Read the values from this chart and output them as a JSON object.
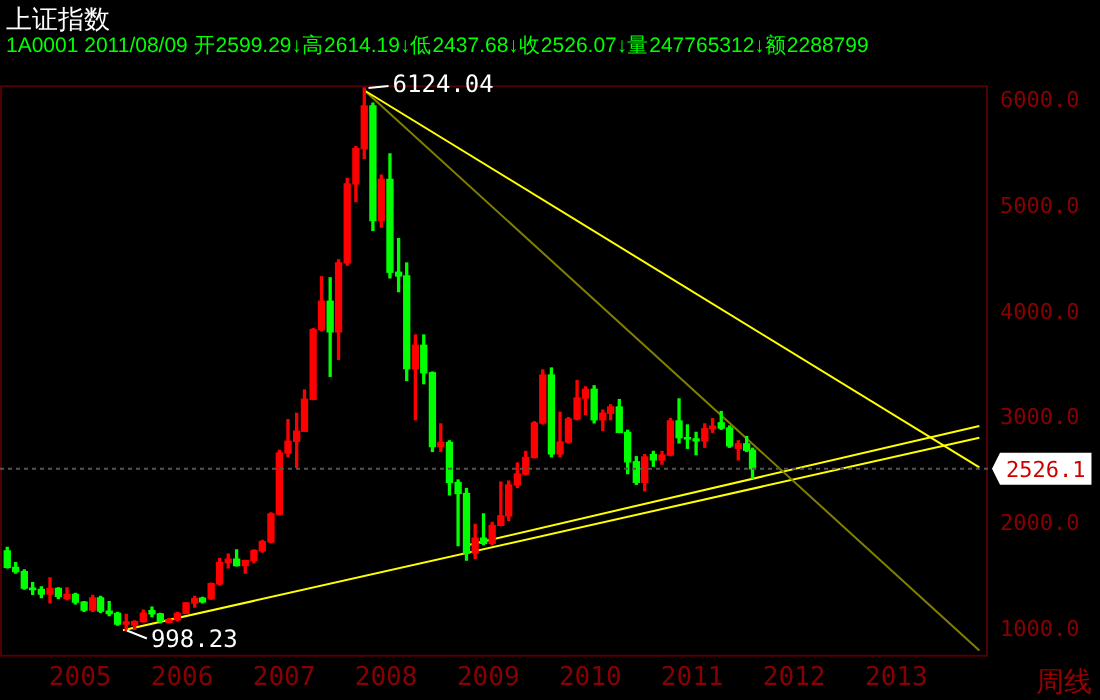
{
  "chart_data": {
    "type": "candlestick",
    "title": "上证指数",
    "subtitle": "1A0001 2011/08/09 开2599.29↓高2614.19↓低2437.68↓收2526.07↓量247765312↓额2288799",
    "xlabel": "周线",
    "x": [
      "2004-04-15",
      "2004-05-15",
      "2004-06-15",
      "2004-07-15",
      "2004-08-15",
      "2004-09-15",
      "2004-10-15",
      "2004-11-15",
      "2004-12-15",
      "2005-01-15",
      "2005-02-15",
      "2005-03-15",
      "2005-04-15",
      "2005-05-15",
      "2005-06-15",
      "2005-07-15",
      "2005-08-15",
      "2005-09-15",
      "2005-10-15",
      "2005-11-15",
      "2005-12-15",
      "2006-01-15",
      "2006-02-15",
      "2006-03-15",
      "2006-04-15",
      "2006-05-15",
      "2006-06-15",
      "2006-07-15",
      "2006-08-15",
      "2006-09-15",
      "2006-10-15",
      "2006-11-15",
      "2006-12-15",
      "2007-01-15",
      "2007-02-15",
      "2007-03-15",
      "2007-04-15",
      "2007-05-15",
      "2007-06-15",
      "2007-07-15",
      "2007-08-15",
      "2007-09-15",
      "2007-10-15",
      "2007-11-15",
      "2007-12-15",
      "2008-01-15",
      "2008-02-15",
      "2008-03-15",
      "2008-04-15",
      "2008-05-15",
      "2008-06-15",
      "2008-07-15",
      "2008-08-15",
      "2008-09-15",
      "2008-10-15",
      "2008-11-15",
      "2008-12-15",
      "2009-01-15",
      "2009-02-15",
      "2009-03-15",
      "2009-04-15",
      "2009-05-15",
      "2009-06-15",
      "2009-07-15",
      "2009-08-15",
      "2009-09-15",
      "2009-10-15",
      "2009-11-15",
      "2009-12-15",
      "2010-01-15",
      "2010-02-15",
      "2010-03-15",
      "2010-04-15",
      "2010-05-15",
      "2010-06-15",
      "2010-07-15",
      "2010-08-15",
      "2010-09-15",
      "2010-10-15",
      "2010-11-15",
      "2010-12-15",
      "2011-01-15",
      "2011-02-15",
      "2011-03-15",
      "2011-04-15",
      "2011-05-15",
      "2011-06-15",
      "2011-07-15",
      "2011-08-05"
    ],
    "ohlc": [
      [
        1750,
        1783,
        1590,
        1595
      ],
      [
        1595,
        1640,
        1540,
        1555
      ],
      [
        1555,
        1570,
        1390,
        1399
      ],
      [
        1399,
        1450,
        1340,
        1386
      ],
      [
        1386,
        1410,
        1310,
        1342
      ],
      [
        1342,
        1496,
        1260,
        1396
      ],
      [
        1396,
        1400,
        1300,
        1320
      ],
      [
        1300,
        1400,
        1290,
        1340
      ],
      [
        1340,
        1350,
        1250,
        1266
      ],
      [
        1266,
        1270,
        1180,
        1191
      ],
      [
        1191,
        1330,
        1180,
        1306
      ],
      [
        1306,
        1320,
        1170,
        1181
      ],
      [
        1181,
        1270,
        1140,
        1159
      ],
      [
        1159,
        1170,
        1050,
        1060
      ],
      [
        1060,
        1150,
        998.23,
        1080
      ],
      [
        1050,
        1090,
        1010,
        1083
      ],
      [
        1083,
        1190,
        1080,
        1162
      ],
      [
        1185,
        1220,
        1130,
        1155
      ],
      [
        1155,
        1160,
        1070,
        1092
      ],
      [
        1075,
        1110,
        1070,
        1099
      ],
      [
        1099,
        1170,
        1090,
        1161
      ],
      [
        1161,
        1260,
        1160,
        1258
      ],
      [
        1258,
        1320,
        1220,
        1299
      ],
      [
        1305,
        1310,
        1260,
        1270
      ],
      [
        1298,
        1445,
        1295,
        1440
      ],
      [
        1440,
        1680,
        1430,
        1641
      ],
      [
        1641,
        1720,
        1590,
        1672
      ],
      [
        1672,
        1760,
        1610,
        1612
      ],
      [
        1612,
        1660,
        1540,
        1658
      ],
      [
        1658,
        1760,
        1640,
        1752
      ],
      [
        1752,
        1850,
        1740,
        1837
      ],
      [
        1837,
        2110,
        1830,
        2099
      ],
      [
        2099,
        2700,
        2090,
        2675
      ],
      [
        2675,
        2990,
        2640,
        2786
      ],
      [
        2786,
        3050,
        2540,
        2881
      ],
      [
        2881,
        3270,
        2880,
        3183
      ],
      [
        3183,
        3850,
        3180,
        3841
      ],
      [
        3841,
        4340,
        3830,
        4109
      ],
      [
        4109,
        4330,
        3400,
        3820
      ],
      [
        3820,
        4500,
        3560,
        4471
      ],
      [
        4471,
        5270,
        4450,
        5218
      ],
      [
        5218,
        5570,
        5050,
        5552
      ],
      [
        5552,
        6124.04,
        5460,
        5954
      ],
      [
        5954,
        5980,
        4780,
        4871
      ],
      [
        4871,
        5300,
        4810,
        5261
      ],
      [
        5261,
        5500,
        4330,
        4383
      ],
      [
        4383,
        4700,
        4200,
        4348
      ],
      [
        4348,
        4470,
        3360,
        3472
      ],
      [
        3472,
        3790,
        2990,
        3693
      ],
      [
        3693,
        3790,
        3330,
        3433
      ],
      [
        3433,
        3440,
        2690,
        2736
      ],
      [
        2736,
        2950,
        2690,
        2775
      ],
      [
        2775,
        2790,
        2280,
        2397
      ],
      [
        2397,
        2420,
        1800,
        2293
      ],
      [
        2293,
        2340,
        1664,
        1729
      ],
      [
        1729,
        2000,
        1680,
        1871
      ],
      [
        1871,
        2100,
        1810,
        1821
      ],
      [
        1821,
        2020,
        1810,
        1991
      ],
      [
        1991,
        2400,
        1990,
        2082
      ],
      [
        2082,
        2410,
        2040,
        2373
      ],
      [
        2373,
        2580,
        2350,
        2477
      ],
      [
        2477,
        2690,
        2470,
        2633
      ],
      [
        2633,
        2970,
        2630,
        2959
      ],
      [
        2959,
        3460,
        2950,
        3412
      ],
      [
        3412,
        3478,
        2640,
        2667
      ],
      [
        2667,
        3060,
        2640,
        2779
      ],
      [
        2779,
        3010,
        2770,
        2996
      ],
      [
        2996,
        3360,
        2990,
        3195
      ],
      [
        3195,
        3300,
        3040,
        3277
      ],
      [
        3277,
        3310,
        2960,
        2989
      ],
      [
        2989,
        3080,
        2890,
        3051
      ],
      [
        3051,
        3130,
        2990,
        3110
      ],
      [
        3110,
        3180,
        2870,
        2870
      ],
      [
        2870,
        2890,
        2480,
        2592
      ],
      [
        2592,
        2640,
        2380,
        2398
      ],
      [
        2398,
        2660,
        2319,
        2638
      ],
      [
        2660,
        2690,
        2550,
        2610
      ],
      [
        2610,
        2690,
        2570,
        2656
      ],
      [
        2656,
        3000,
        2650,
        2978
      ],
      [
        2978,
        3186,
        2770,
        2820
      ],
      [
        2820,
        2940,
        2720,
        2808
      ],
      [
        2808,
        2870,
        2660,
        2790
      ],
      [
        2790,
        2950,
        2730,
        2905
      ],
      [
        2905,
        3000,
        2870,
        2928
      ],
      [
        2960,
        3067,
        2900,
        2911
      ],
      [
        2911,
        2930,
        2730,
        2743
      ],
      [
        2720,
        2790,
        2610,
        2762
      ],
      [
        2762,
        2830,
        2690,
        2701
      ],
      [
        2701,
        2720,
        2437.68,
        2526.07
      ]
    ],
    "colors": [
      "#00ff00",
      "#00ff00",
      "#00ff00",
      "#00ff00",
      "#00ff00",
      "#ff0000",
      "#00ff00",
      "#ff0000",
      "#00ff00",
      "#00ff00",
      "#ff0000",
      "#00ff00",
      "#00ff00",
      "#00ff00",
      "#ff0000",
      "#ff0000",
      "#ff0000",
      "#00ff00",
      "#00ff00",
      "#ff0000",
      "#ff0000",
      "#ff0000",
      "#ff0000",
      "#00ff00",
      "#ff0000",
      "#ff0000",
      "#ff0000",
      "#00ff00",
      "#ff0000",
      "#ff0000",
      "#ff0000",
      "#ff0000",
      "#ff0000",
      "#ff0000",
      "#ff0000",
      "#ff0000",
      "#ff0000",
      "#ff0000",
      "#00ff00",
      "#ff0000",
      "#ff0000",
      "#ff0000",
      "#ff0000",
      "#00ff00",
      "#ff0000",
      "#00ff00",
      "#00ff00",
      "#00ff00",
      "#ff0000",
      "#00ff00",
      "#00ff00",
      "#ff0000",
      "#00ff00",
      "#00ff00",
      "#00ff00",
      "#ff0000",
      "#00ff00",
      "#ff0000",
      "#ff0000",
      "#ff0000",
      "#ff0000",
      "#ff0000",
      "#ff0000",
      "#ff0000",
      "#00ff00",
      "#ff0000",
      "#ff0000",
      "#ff0000",
      "#ff0000",
      "#00ff00",
      "#ff0000",
      "#ff0000",
      "#00ff00",
      "#00ff00",
      "#00ff00",
      "#ff0000",
      "#00ff00",
      "#ff0000",
      "#ff0000",
      "#00ff00",
      "#00ff00",
      "#00ff00",
      "#ff0000",
      "#ff0000",
      "#00ff00",
      "#00ff00",
      "#ff0000",
      "#00ff00",
      "#00ff00"
    ],
    "series": [
      {
        "type": "line",
        "color": "#ffff00",
        "x": [
          "2007-10-16",
          "2013-10-25"
        ],
        "values": [
          6100,
          2540
        ]
      },
      {
        "type": "line",
        "color": "#808000",
        "x": [
          "2007-10-16",
          "2013-10-25"
        ],
        "values": [
          6100,
          810
        ]
      },
      {
        "type": "line",
        "color": "#ffff00",
        "x": [
          "2005-06-03",
          "2013-10-25"
        ],
        "values": [
          1000,
          2820
        ]
      },
      {
        "type": "line",
        "color": "#ffff00",
        "x": [
          "2008-10-10",
          "2013-10-25"
        ],
        "values": [
          1800,
          2930
        ]
      }
    ],
    "marker": "none",
    "legend": false,
    "grid": false,
    "xlim": [
      "2004-03-20",
      "2013-11-25"
    ],
    "xticks": [
      "2005",
      "2006",
      "2007",
      "2008",
      "2009",
      "2010",
      "2011",
      "2012",
      "2013"
    ],
    "ylim": [
      750,
      6150
    ],
    "yticks": [
      {
        "value": 1000,
        "label": "1000.0"
      },
      {
        "value": 2000,
        "label": "2000.0"
      },
      {
        "value": 3000,
        "label": "3000.0"
      },
      {
        "value": 4000,
        "label": "4000.0"
      },
      {
        "value": 5000,
        "label": "5000.0"
      },
      {
        "value": 6000,
        "label": "6000.0"
      }
    ],
    "annotations": [
      {
        "text": "6124.04",
        "x": "2007-10-16",
        "y": 6124.04
      },
      {
        "text": "998.23",
        "x": "2005-06-03",
        "y": 998.23
      }
    ],
    "ref_lines": [
      {
        "axis": "y",
        "value": 2526.1,
        "label": "2526.1",
        "color": "#555555",
        "line_style": "dotted"
      }
    ]
  }
}
